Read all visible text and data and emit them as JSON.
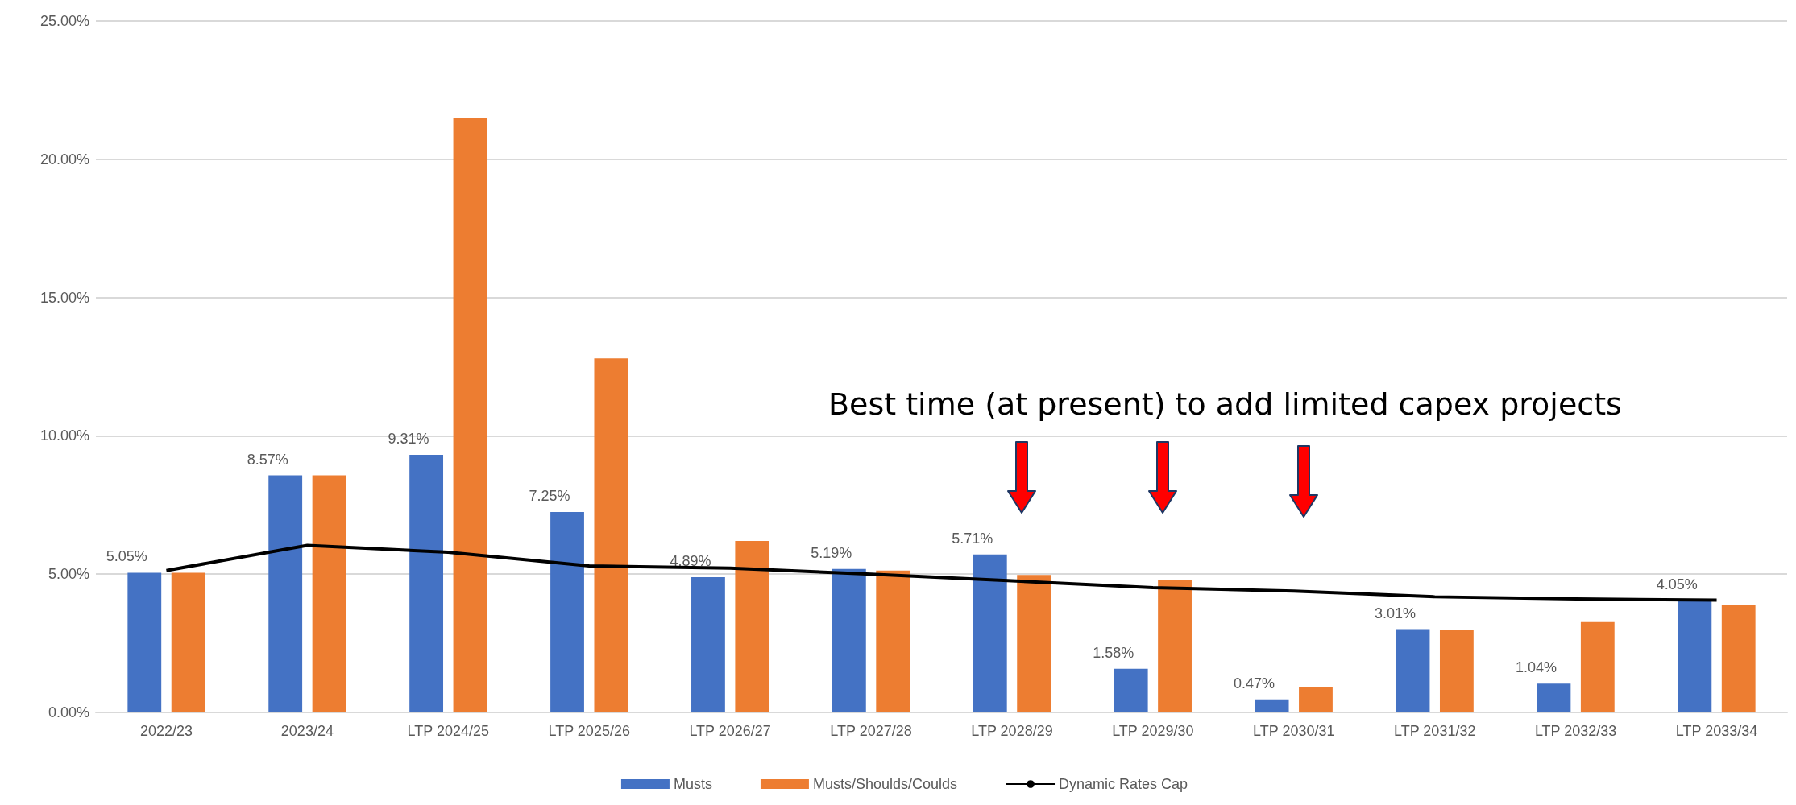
{
  "chart_data": {
    "type": "bar",
    "categories": [
      "2022/23",
      "2023/24",
      "LTP 2024/25",
      "LTP 2025/26",
      "LTP 2026/27",
      "LTP 2027/28",
      "LTP 2028/29",
      "LTP 2029/30",
      "LTP 2030/31",
      "LTP 2031/32",
      "LTP 2032/33",
      "LTP 2033/34"
    ],
    "series": [
      {
        "name": "Musts",
        "color": "#4472c4",
        "values": [
          5.05,
          8.57,
          9.31,
          7.25,
          4.89,
          5.19,
          5.71,
          1.58,
          0.47,
          3.01,
          1.04,
          4.05
        ],
        "value_labels": [
          "5.05%",
          "8.57%",
          "9.31%",
          "7.25%",
          "4.89%",
          "5.19%",
          "5.71%",
          "1.58%",
          "0.47%",
          "3.01%",
          "1.04%",
          "4.05%"
        ]
      },
      {
        "name": "Musts/Shoulds/Coulds",
        "color": "#ed7d31",
        "values": [
          5.05,
          8.57,
          21.5,
          12.8,
          6.2,
          5.13,
          4.97,
          4.8,
          0.91,
          2.98,
          3.27,
          3.89
        ]
      },
      {
        "name": "Dynamic Rates Cap",
        "type": "line",
        "color": "#000000",
        "values": [
          5.13,
          6.04,
          5.79,
          5.3,
          5.22,
          5.0,
          4.76,
          4.51,
          4.39,
          4.18,
          4.1,
          4.06
        ]
      }
    ],
    "ylim": [
      0,
      25
    ],
    "yticks": [
      {
        "value": 0,
        "label": "0.00%"
      },
      {
        "value": 5,
        "label": "5.00%"
      },
      {
        "value": 10,
        "label": "10.00%"
      },
      {
        "value": 15,
        "label": "15.00%"
      },
      {
        "value": 20,
        "label": "20.00%"
      },
      {
        "value": 25,
        "label": "25.00%"
      }
    ],
    "grid": "y",
    "legend": "bottom",
    "marker": "none",
    "annotations": [
      "Best time (at present) to add limited capex projects"
    ]
  }
}
